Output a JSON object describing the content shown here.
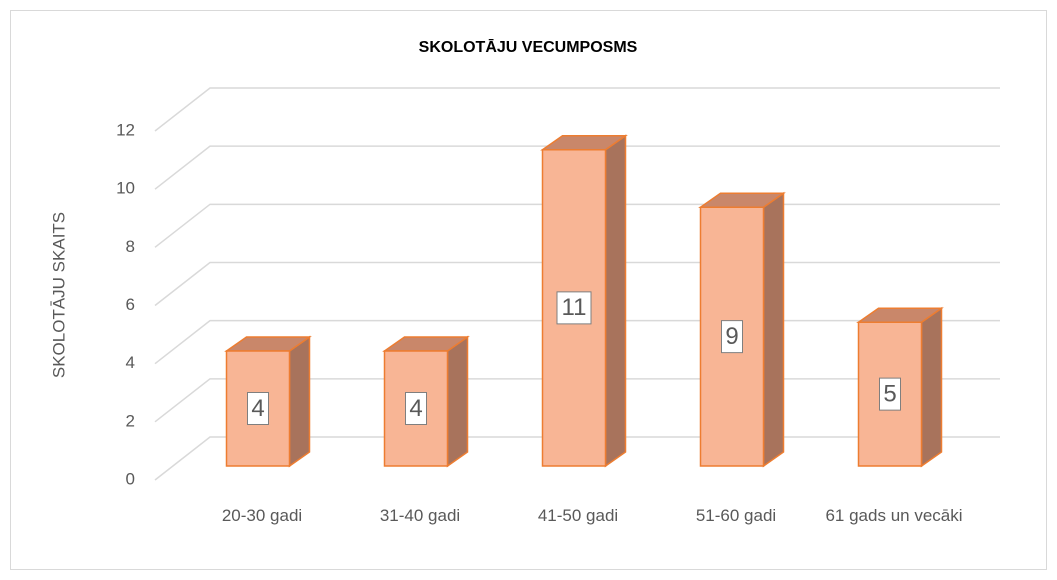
{
  "chart_data": {
    "type": "bar3d",
    "title": "SKOLOTĀJU VECUMPOSMS",
    "y_label": "SKOLOTĀJU SKAITS",
    "categories": [
      "20-30 gadi",
      "31-40 gadi",
      "41-50 gadi",
      "51-60 gadi",
      "61 gads un vecāki"
    ],
    "values": [
      4,
      4,
      11,
      9,
      5
    ],
    "color": "#f8b595",
    "ylim": [
      0,
      12
    ],
    "yticks": [
      0,
      2,
      4,
      6,
      8,
      10,
      12
    ],
    "grid": true
  }
}
